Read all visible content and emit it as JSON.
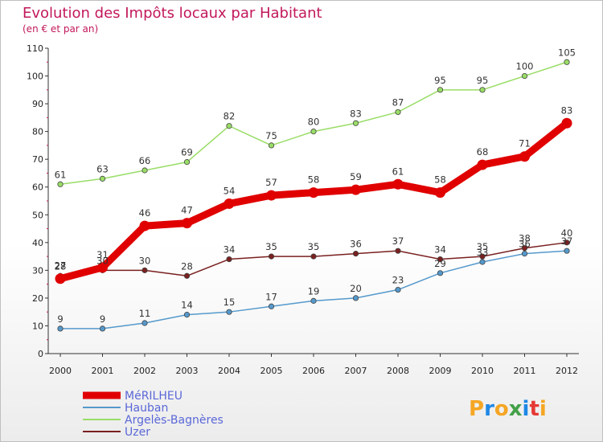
{
  "chart_data": {
    "type": "line",
    "title": "Evolution des Impôts locaux par Habitant",
    "subtitle": "(en € et par an)",
    "xlabel": "",
    "ylabel": "",
    "x": [
      "2000",
      "2001",
      "2002",
      "2003",
      "2004",
      "2005",
      "2006",
      "2007",
      "2008",
      "2009",
      "2010",
      "2011",
      "2012"
    ],
    "ylim": [
      0,
      110
    ],
    "yticks": [
      "0",
      "10",
      "20",
      "30",
      "40",
      "50",
      "60",
      "70",
      "80",
      "90",
      "100",
      "110"
    ],
    "grid": false,
    "legend_position": "bottom-left",
    "series": [
      {
        "name": "MéRILHEU",
        "color": "#e00000",
        "values": [
          27,
          31,
          46,
          47,
          54,
          57,
          58,
          59,
          61,
          58,
          68,
          71,
          83
        ]
      },
      {
        "name": "Hauban",
        "color": "#5599cc",
        "values": [
          9,
          9,
          11,
          14,
          15,
          17,
          19,
          20,
          23,
          29,
          33,
          36,
          37
        ]
      },
      {
        "name": "Argelès-Bagnères",
        "color": "#99dd66",
        "values": [
          61,
          63,
          66,
          69,
          82,
          75,
          80,
          83,
          87,
          95,
          95,
          100,
          105
        ]
      },
      {
        "name": "Uzer",
        "color": "#7a2020",
        "values": [
          28,
          30,
          30,
          28,
          34,
          35,
          35,
          36,
          37,
          34,
          35,
          38,
          40
        ]
      }
    ]
  },
  "logo": {
    "letters": [
      "P",
      "r",
      "o",
      "x",
      "i",
      "t",
      "i"
    ],
    "colors": [
      "#f5a623",
      "#1e88e5",
      "#f5a623",
      "#43a047",
      "#1e88e5",
      "#e53935",
      "#f5a623"
    ]
  }
}
